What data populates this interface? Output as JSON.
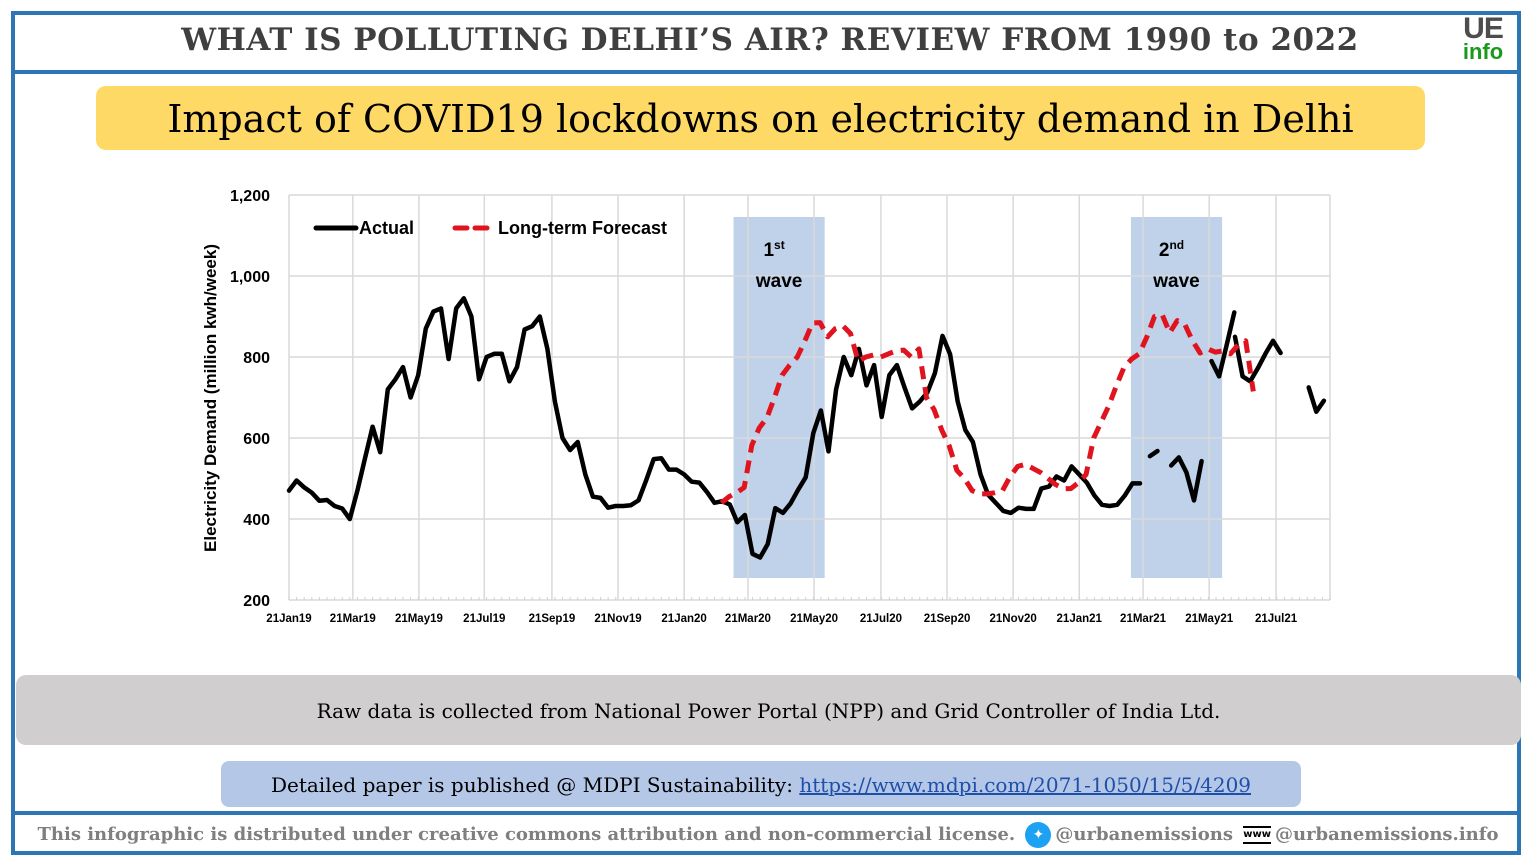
{
  "header": {
    "title": "WHAT IS POLLUTING DELHI’S AIR? REVIEW FROM 1990 to 2022",
    "logo_top": "UE",
    "logo_bottom": "info"
  },
  "subtitle": "Impact of COVID19 lockdowns on electricity demand in Delhi",
  "source_note": "Raw data is collected from National Power Portal (NPP) and Grid Controller of India Ltd.",
  "paper": {
    "prefix": "Detailed paper is published @ MDPI Sustainability: ",
    "link_text": "https://www.mdpi.com/2071-1050/15/5/4209"
  },
  "footer": {
    "license": "This infographic is distributed under creative commons attribution and non-commercial license.",
    "twitter_icon": "twitter-icon",
    "twitter_handle": "@urbanemissions",
    "web_icon": "www-globe-icon",
    "web_handle": "@urbanemissions.info"
  },
  "colors": {
    "frame": "#2e75b6",
    "subtitle_bg": "#ffd966",
    "source_bg": "#d0cece",
    "paper_bg": "#b4c7e7",
    "actual": "#000000",
    "forecast": "#e0141e",
    "wave_band": "#b4cbe4",
    "logo_green": "#1a9a1a"
  },
  "chart_data": {
    "type": "line",
    "title": "Impact of COVID19 lockdowns on electricity demand in Delhi",
    "xlabel": "",
    "ylabel": "Electricity Demand (million kwh/week)",
    "ylim": [
      200,
      1200
    ],
    "yticks": [
      200,
      400,
      600,
      800,
      1000,
      1200
    ],
    "ytick_labels": [
      "200",
      "400",
      "600",
      "800",
      "1,000",
      "1,200"
    ],
    "x_unit": "weeks since 21Jan19",
    "xlim": [
      0,
      137
    ],
    "xtick_labels": [
      "21Jan19",
      "21Mar19",
      "21May19",
      "21Jul19",
      "21Sep19",
      "21Nov19",
      "21Jan20",
      "21Mar20",
      "21May20",
      "21Jul20",
      "21Sep20",
      "21Nov20",
      "21Jan21",
      "21Mar21",
      "21May21",
      "21Jul21"
    ],
    "xtick_weeks": [
      0,
      8.4,
      17.1,
      25.7,
      34.6,
      43.3,
      52,
      60.4,
      69.1,
      77.9,
      86.6,
      95.3,
      104,
      112.4,
      121.1,
      129.9
    ],
    "grid": true,
    "legend": {
      "position": "top-left",
      "entries": [
        "Actual",
        "Long-term Forecast"
      ]
    },
    "annotations": [
      {
        "label_num": "1",
        "label_sup": "st",
        "label_word": "wave",
        "x_start_week": 58.5,
        "x_end_week": 70.5
      },
      {
        "label_num": "2",
        "label_sup": "nd",
        "label_word": "wave",
        "x_start_week": 110.8,
        "x_end_week": 122.8
      }
    ],
    "series": [
      {
        "name": "Actual",
        "style": "solid",
        "segments": [
          {
            "start_week": 0,
            "values": [
              470,
              495,
              478,
              465,
              445,
              447,
              432,
              426,
              400,
              470,
              550,
              628,
              565,
              720,
              745,
              775,
              700,
              755,
              870,
              912,
              920,
              795,
              920,
              945,
              900,
              745,
              800,
              808,
              808,
              740,
              775,
              868,
              876,
              900,
              820,
              690,
              600,
              570,
              590,
              510,
              455,
              452,
              428,
              432,
              432,
              434,
              446,
              495,
              548,
              550,
              522,
              522,
              510,
              492,
              490,
              467,
              440,
              444,
              436,
              392,
              410,
              314,
              305,
              338,
              427,
              415,
              438,
              472,
              503,
              612,
              668,
              567,
              720,
              800,
              755,
              820,
              730,
              780,
              652,
              755,
              780,
              725,
              673,
              690,
              712,
              760,
              852,
              807,
              690,
              620,
              590,
              510,
              460,
              440,
              420,
              415,
              428,
              425,
              425,
              475,
              480,
              505,
              495,
              530,
              510,
              490,
              458,
              435,
              432,
              435,
              458,
              488,
              488
            ]
          },
          {
            "start_week": 113.3,
            "values": [
              555,
              568
            ]
          },
          {
            "start_week": 116.1,
            "values": [
              532,
              552,
              515,
              446,
              543
            ]
          },
          {
            "start_week": 121.4,
            "values": [
              790,
              752,
              830,
              910
            ]
          },
          {
            "start_week": 124.5,
            "values": [
              850,
              752,
              740,
              772,
              808,
              840,
              810
            ]
          },
          {
            "start_week": 134.2,
            "values": [
              725,
              665,
              692
            ]
          }
        ]
      },
      {
        "name": "Long-term Forecast",
        "style": "dashed",
        "segments": [
          {
            "start_week": 56.9,
            "values": [
              440,
              455,
              465,
              478,
              582,
              625,
              650,
              700,
              755,
              780,
              800,
              840,
              884,
              885,
              850,
              870,
              877,
              858,
              790,
              800,
              805,
              800,
              808,
              815,
              817,
              800,
              820,
              700,
              670,
              620,
              580,
              520,
              500,
              470,
              462,
              462,
              465,
              470,
              505,
              530,
              535,
              525,
              515,
              500,
              485,
              475,
              475,
              490,
              510,
              600,
              640,
              680,
              730,
              775,
              795,
              808,
              850,
              900,
              905,
              860,
              890,
              880,
              840,
              810,
              820,
              812,
              815,
              808,
              830,
              840,
              715
            ]
          }
        ]
      }
    ]
  }
}
